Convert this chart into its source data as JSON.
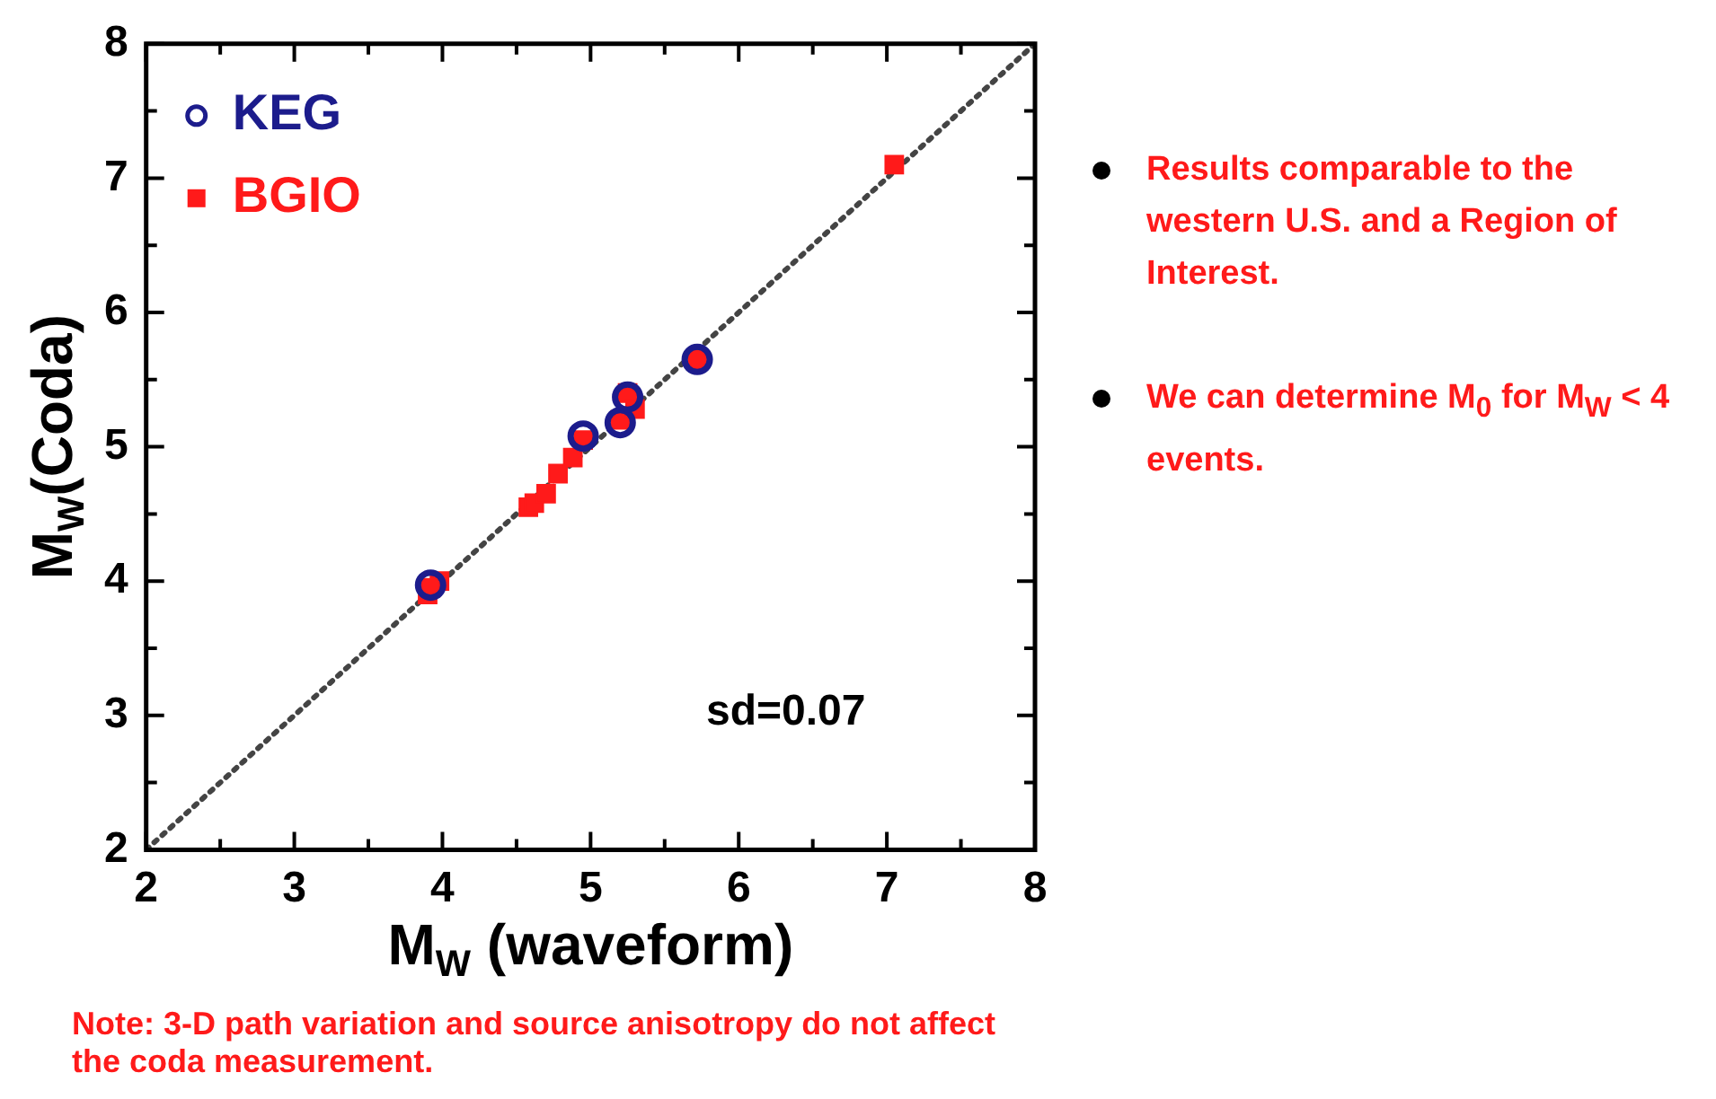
{
  "chart_data": {
    "type": "scatter",
    "xlabel": "M$_{W}$ (waveform)",
    "ylabel": "M$_{W}$(Coda)",
    "xlim": [
      2,
      8
    ],
    "ylim": [
      2,
      8
    ],
    "xticks": [
      2,
      {
        "value": 2.5,
        "label": null
      },
      3,
      {
        "value": 3.5,
        "label": null
      },
      4,
      {
        "value": 4.5,
        "label": null
      },
      5,
      {
        "value": 5.5,
        "label": null
      },
      6,
      {
        "value": 6.5,
        "label": null
      },
      7,
      {
        "value": 7.5,
        "label": null
      },
      8
    ],
    "yticks": [
      2,
      {
        "value": 2.5,
        "label": null
      },
      3,
      {
        "value": 3.5,
        "label": null
      },
      4,
      {
        "value": 4.5,
        "label": null
      },
      5,
      {
        "value": 5.5,
        "label": null
      },
      6,
      {
        "value": 6.5,
        "label": null
      },
      7,
      {
        "value": 7.5,
        "label": null
      },
      8
    ],
    "grid": false,
    "legend": "top left",
    "series": [
      {
        "type": "line",
        "color": "#444444",
        "line_style": "dotted",
        "marker": "none",
        "x": [
          2,
          8
        ],
        "values": [
          2,
          8
        ]
      },
      {
        "name": "BGIO",
        "color": "#ff1a1a",
        "marker": "square",
        "x": [
          3.9,
          3.98,
          3.92,
          4.58,
          4.62,
          4.7,
          4.78,
          4.88,
          4.95,
          5.2,
          5.25,
          5.3,
          5.72,
          7.05
        ],
        "values": [
          3.9,
          4.0,
          3.95,
          4.55,
          4.58,
          4.65,
          4.8,
          4.92,
          5.05,
          5.2,
          5.4,
          5.28,
          5.65,
          7.1
        ]
      },
      {
        "name": "KEG",
        "color": "#1c1c8c",
        "marker": "circle",
        "x": [
          3.92,
          4.95,
          5.2,
          5.25,
          5.72
        ],
        "values": [
          3.97,
          5.08,
          5.18,
          5.37,
          5.65
        ]
      }
    ],
    "annotations": [
      "sd=0.07",
      "Results comparable to the western U.S. and a Region of Interest.",
      "We can determine M$_{0}$ for M$_{W}$ < 4 events.",
      "Note: 3-D path variation and source anisotropy do not affect the coda measurement."
    ]
  }
}
